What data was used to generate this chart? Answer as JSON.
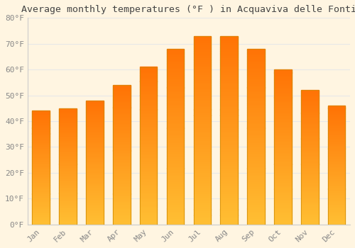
{
  "title": "Average monthly temperatures (°F ) in Acquaviva delle Fonti",
  "months": [
    "Jan",
    "Feb",
    "Mar",
    "Apr",
    "May",
    "Jun",
    "Jul",
    "Aug",
    "Sep",
    "Oct",
    "Nov",
    "Dec"
  ],
  "values": [
    44,
    45,
    48,
    54,
    61,
    68,
    73,
    73,
    68,
    60,
    52,
    46
  ],
  "bar_color_main": "#FFA500",
  "bar_color_light": "#FFD060",
  "background_color": "#FFF5E1",
  "grid_color": "#E8E8E8",
  "ylim": [
    0,
    80
  ],
  "yticks": [
    0,
    10,
    20,
    30,
    40,
    50,
    60,
    70,
    80
  ],
  "ytick_labels": [
    "0°F",
    "10°F",
    "20°F",
    "30°F",
    "40°F",
    "50°F",
    "60°F",
    "70°F",
    "80°F"
  ],
  "title_fontsize": 9.5,
  "tick_fontsize": 8,
  "title_color": "#444444",
  "tick_color": "#888888",
  "spine_color": "#CCCCCC"
}
